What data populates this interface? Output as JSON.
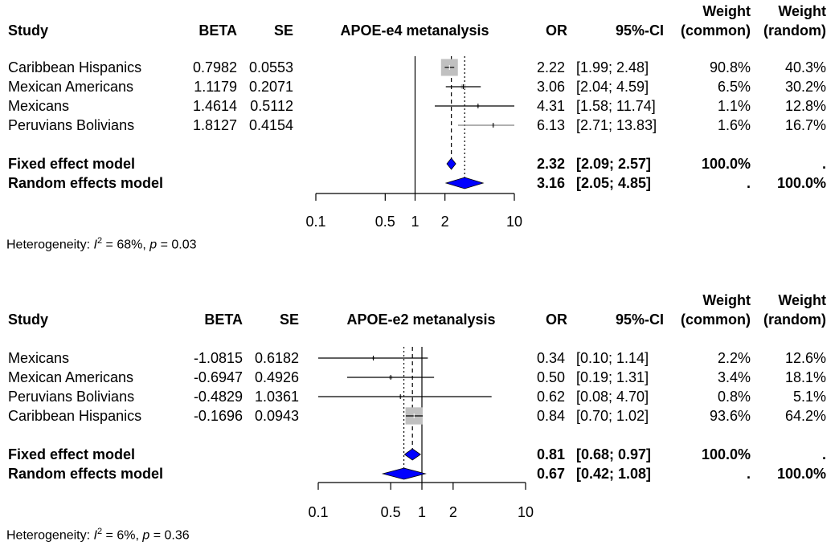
{
  "chart_data": [
    {
      "type": "forest",
      "title": "APOE-e4 metanalysis",
      "headers": {
        "study": "Study",
        "beta": "BETA",
        "se": "SE",
        "plot": "APOE-e4 metanalysis",
        "or": "OR",
        "ci": "95%-CI",
        "weight_common": [
          "Weight",
          "(common)"
        ],
        "weight_random": [
          "Weight",
          "(random)"
        ]
      },
      "studies": [
        {
          "name": "Caribbean Hispanics",
          "beta": "0.7982",
          "se": "0.0553",
          "or": 2.22,
          "lower": 1.99,
          "upper": 2.48,
          "or_text": "2.22",
          "ci_text": "[1.99;  2.48]",
          "w_common": "90.8%",
          "w_random": "40.3%",
          "weight": 90.8
        },
        {
          "name": "Mexican Americans",
          "beta": "1.1179",
          "se": "0.2071",
          "or": 3.06,
          "lower": 2.04,
          "upper": 4.59,
          "or_text": "3.06",
          "ci_text": "[2.04;  4.59]",
          "w_common": "6.5%",
          "w_random": "30.2%",
          "weight": 6.5
        },
        {
          "name": "Mexicans",
          "beta": "1.4614",
          "se": "0.5112",
          "or": 4.31,
          "lower": 1.58,
          "upper": 11.74,
          "or_text": "4.31",
          "ci_text": "[1.58; 11.74]",
          "w_common": "1.1%",
          "w_random": "12.8%",
          "weight": 1.1
        },
        {
          "name": "Peruvians Bolivians",
          "beta": "1.8127",
          "se": "0.4154",
          "or": 6.13,
          "lower": 2.71,
          "upper": 13.83,
          "or_text": "6.13",
          "ci_text": "[2.71; 13.83]",
          "w_common": "1.6%",
          "w_random": "16.7%",
          "weight": 1.6
        }
      ],
      "models": [
        {
          "name": "Fixed effect model",
          "or": 2.32,
          "lower": 2.09,
          "upper": 2.57,
          "or_text": "2.32",
          "ci_text": "[2.09;  2.57]",
          "w_common": "100.0%",
          "w_random": "."
        },
        {
          "name": "Random effects model",
          "or": 3.16,
          "lower": 2.05,
          "upper": 4.85,
          "or_text": "3.16",
          "ci_text": "[2.05;  4.85]",
          "w_common": ".",
          "w_random": "100.0%"
        }
      ],
      "x_scale": "log",
      "xlim": [
        0.1,
        10
      ],
      "x_ticks": [
        0.1,
        0.5,
        1,
        2,
        10
      ],
      "x_tick_labels": [
        "0.1",
        "0.5",
        "1",
        "2",
        "10"
      ],
      "heterogeneity": {
        "label": "Heterogeneity: ",
        "i2_symbol": "I",
        "i2_exp": "2",
        "i2_value": " = 68%, ",
        "p_symbol": "p",
        "p_value": " = 0.03"
      },
      "colors": {
        "diamond": "#0000ff",
        "square": "#c0c0c0",
        "line": "#000000",
        "study_line": "#808080"
      }
    },
    {
      "type": "forest",
      "title": "APOE-e2 metanalysis",
      "headers": {
        "study": "Study",
        "beta": "BETA",
        "se": "SE",
        "plot": "APOE-e2 metanalysis",
        "or": "OR",
        "ci": "95%-CI",
        "weight_common": [
          "Weight",
          "(common)"
        ],
        "weight_random": [
          "Weight",
          "(random)"
        ]
      },
      "studies": [
        {
          "name": "Mexicans",
          "beta": "-1.0815",
          "se": "0.6182",
          "or": 0.34,
          "lower": 0.1,
          "upper": 1.14,
          "or_text": "0.34",
          "ci_text": "[0.10; 1.14]",
          "w_common": "2.2%",
          "w_random": "12.6%",
          "weight": 2.2
        },
        {
          "name": "Mexican Americans",
          "beta": "-0.6947",
          "se": "0.4926",
          "or": 0.5,
          "lower": 0.19,
          "upper": 1.31,
          "or_text": "0.50",
          "ci_text": "[0.19; 1.31]",
          "w_common": "3.4%",
          "w_random": "18.1%",
          "weight": 3.4
        },
        {
          "name": "Peruvians Bolivians",
          "beta": "-0.4829",
          "se": "1.0361",
          "or": 0.62,
          "lower": 0.08,
          "upper": 4.7,
          "or_text": "0.62",
          "ci_text": "[0.08; 4.70]",
          "w_common": "0.8%",
          "w_random": "5.1%",
          "weight": 0.8
        },
        {
          "name": "Caribbean Hispanics",
          "beta": "-0.1696",
          "se": "0.0943",
          "or": 0.84,
          "lower": 0.7,
          "upper": 1.02,
          "or_text": "0.84",
          "ci_text": "[0.70; 1.02]",
          "w_common": "93.6%",
          "w_random": "64.2%",
          "weight": 93.6
        }
      ],
      "models": [
        {
          "name": "Fixed effect model",
          "or": 0.81,
          "lower": 0.68,
          "upper": 0.97,
          "or_text": "0.81",
          "ci_text": "[0.68; 0.97]",
          "w_common": "100.0%",
          "w_random": "."
        },
        {
          "name": "Random effects model",
          "or": 0.67,
          "lower": 0.42,
          "upper": 1.08,
          "or_text": "0.67",
          "ci_text": "[0.42; 1.08]",
          "w_common": ".",
          "w_random": "100.0%"
        }
      ],
      "x_scale": "log",
      "xlim": [
        0.1,
        10
      ],
      "x_ticks": [
        0.1,
        0.5,
        1,
        2,
        10
      ],
      "x_tick_labels": [
        "0.1",
        "0.5",
        "1",
        "2",
        "10"
      ],
      "heterogeneity": {
        "label": "Heterogeneity: ",
        "i2_symbol": "I",
        "i2_exp": "2",
        "i2_value": " = 6%, ",
        "p_symbol": "p",
        "p_value": " = 0.36"
      },
      "colors": {
        "diamond": "#0000ff",
        "square": "#c0c0c0",
        "line": "#000000",
        "study_line": "#808080"
      }
    }
  ]
}
